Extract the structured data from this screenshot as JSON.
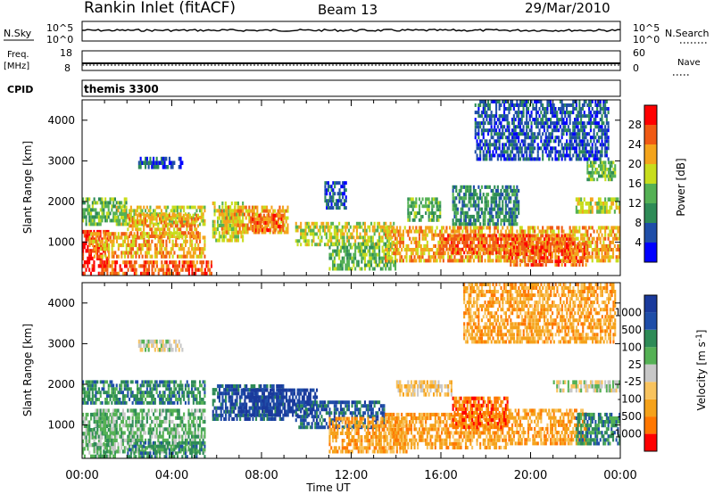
{
  "header": {
    "station": "Rankin Inlet (fitACF)",
    "beam": "Beam 13",
    "date": "29/Mar/2010"
  },
  "panels": {
    "nsky_label": "N.Sky",
    "nsky_ticks": [
      "10^5",
      "10^0"
    ],
    "nsearch_label": "N.Search",
    "nsearch_ticks": [
      "10^5",
      "10^0"
    ],
    "freq_label_1": "Freq.",
    "freq_label_2": "[MHz]",
    "freq_ticks": [
      "18",
      "8"
    ],
    "nave_label": "Nave",
    "nave_ticks": [
      "60",
      "0"
    ],
    "cpid_label": "CPID",
    "cpid_value": "themis 3300"
  },
  "chart_data": [
    {
      "type": "heatmap",
      "name": "power",
      "ylabel": "Slant Range [km]",
      "xlabel": "Time UT",
      "ylim": [
        180,
        4500
      ],
      "yticks": [
        1000,
        2000,
        3000,
        4000
      ],
      "xticks": [
        "00:00",
        "04:00",
        "08:00",
        "12:00",
        "16:00",
        "20:00",
        "00:00"
      ],
      "xlim_hours": [
        0,
        24
      ],
      "colorbar_label": "Power [dB]",
      "colorbar_ticks": [
        "28",
        "24",
        "20",
        "16",
        "12",
        "8",
        "4"
      ],
      "colors": [
        "#0000ff",
        "#1f4ea8",
        "#2e8b57",
        "#55b155",
        "#c8dd1d",
        "#f4a41c",
        "#f05a14",
        "#ff0000"
      ],
      "echo_regions": [
        {
          "t0": 0.0,
          "t1": 1.2,
          "r0": 180,
          "r1": 1300,
          "level": 7
        },
        {
          "t0": 0.3,
          "t1": 5.5,
          "r0": 600,
          "r1": 1250,
          "level": 5
        },
        {
          "t0": 0.0,
          "t1": 2.0,
          "r0": 1400,
          "r1": 2100,
          "level": 3
        },
        {
          "t0": 1.5,
          "t1": 5.5,
          "r0": 1400,
          "r1": 1900,
          "level": 4
        },
        {
          "t0": 0.8,
          "t1": 5.8,
          "r0": 180,
          "r1": 550,
          "level": 6
        },
        {
          "t0": 2.0,
          "t1": 5.2,
          "r0": 1100,
          "r1": 1700,
          "level": 5
        },
        {
          "t0": 5.8,
          "t1": 7.2,
          "r0": 1000,
          "r1": 2000,
          "level": 4
        },
        {
          "t0": 6.2,
          "t1": 9.2,
          "r0": 1200,
          "r1": 1900,
          "level": 5
        },
        {
          "t0": 7.5,
          "t1": 9.0,
          "r0": 1250,
          "r1": 1700,
          "level": 6
        },
        {
          "t0": 9.5,
          "t1": 14.0,
          "r0": 900,
          "r1": 1500,
          "level": 4
        },
        {
          "t0": 11.0,
          "t1": 14.0,
          "r0": 300,
          "r1": 1000,
          "level": 3
        },
        {
          "t0": 13.5,
          "t1": 24.0,
          "r0": 500,
          "r1": 1400,
          "level": 5
        },
        {
          "t0": 16.0,
          "t1": 22.0,
          "r0": 700,
          "r1": 1200,
          "level": 6
        },
        {
          "t0": 19.0,
          "t1": 22.5,
          "r0": 400,
          "r1": 1000,
          "level": 6
        },
        {
          "t0": 22.0,
          "t1": 24.0,
          "r0": 1700,
          "r1": 2100,
          "level": 4
        },
        {
          "t0": 14.5,
          "t1": 16.0,
          "r0": 1500,
          "r1": 2100,
          "level": 3
        },
        {
          "t0": 10.8,
          "t1": 11.8,
          "r0": 1800,
          "r1": 2500,
          "level": 1
        },
        {
          "t0": 2.5,
          "t1": 4.5,
          "r0": 2800,
          "r1": 3100,
          "level": 1
        },
        {
          "t0": 22.5,
          "t1": 23.8,
          "r0": 2500,
          "r1": 3000,
          "level": 3
        },
        {
          "t0": 16.5,
          "t1": 19.5,
          "r0": 1400,
          "r1": 2400,
          "level": 2
        },
        {
          "t0": 17.5,
          "t1": 23.5,
          "r0": 3000,
          "r1": 4500,
          "level": 1
        }
      ]
    },
    {
      "type": "heatmap",
      "name": "velocity",
      "ylabel": "Slant Range [km]",
      "xlabel": "Time UT",
      "ylim": [
        180,
        4500
      ],
      "yticks": [
        1000,
        2000,
        3000,
        4000
      ],
      "xticks": [
        "00:00",
        "04:00",
        "08:00",
        "12:00",
        "16:00",
        "20:00",
        "00:00"
      ],
      "xlim_hours": [
        0,
        24
      ],
      "colorbar_label": "Velocity [m s^-1]",
      "colorbar_ticks": [
        "1000",
        "500",
        "100",
        "25",
        "-25",
        "-100",
        "-500",
        "-1000"
      ],
      "colors": [
        "#ff0000",
        "#ff7700",
        "#f5a21b",
        "#f8c35e",
        "#c8c8c8",
        "#55b155",
        "#2e8b57",
        "#1f4ea8",
        "#1a3a9c"
      ],
      "echo_regions": [
        {
          "t0": 0.0,
          "t1": 1.5,
          "r0": 180,
          "r1": 1300,
          "level": 5
        },
        {
          "t0": 0.5,
          "t1": 5.5,
          "r0": 300,
          "r1": 1400,
          "level": 5
        },
        {
          "t0": 0.0,
          "t1": 5.5,
          "r0": 1500,
          "r1": 2100,
          "level": 6
        },
        {
          "t0": 2.0,
          "t1": 5.5,
          "r0": 180,
          "r1": 600,
          "level": 6
        },
        {
          "t0": 5.8,
          "t1": 9.0,
          "r0": 1100,
          "r1": 2000,
          "level": 7
        },
        {
          "t0": 7.0,
          "t1": 10.5,
          "r0": 1200,
          "r1": 1900,
          "level": 8
        },
        {
          "t0": 9.5,
          "t1": 13.5,
          "r0": 900,
          "r1": 1600,
          "level": 7
        },
        {
          "t0": 11.0,
          "t1": 14.5,
          "r0": 300,
          "r1": 1200,
          "level": 2
        },
        {
          "t0": 13.5,
          "t1": 19.0,
          "r0": 400,
          "r1": 1300,
          "level": 2
        },
        {
          "t0": 16.5,
          "t1": 19.0,
          "r0": 900,
          "r1": 1700,
          "level": 1
        },
        {
          "t0": 19.0,
          "t1": 22.5,
          "r0": 500,
          "r1": 1400,
          "level": 2
        },
        {
          "t0": 21.0,
          "t1": 24.0,
          "r0": 1800,
          "r1": 2100,
          "level": 4
        },
        {
          "t0": 22.0,
          "t1": 24.0,
          "r0": 500,
          "r1": 1300,
          "level": 6
        },
        {
          "t0": 14.0,
          "t1": 16.5,
          "r0": 1700,
          "r1": 2100,
          "level": 3
        },
        {
          "t0": 17.0,
          "t1": 23.8,
          "r0": 3000,
          "r1": 4500,
          "level": 2
        },
        {
          "t0": 2.5,
          "t1": 4.5,
          "r0": 2800,
          "r1": 3100,
          "level": 4
        }
      ]
    }
  ]
}
